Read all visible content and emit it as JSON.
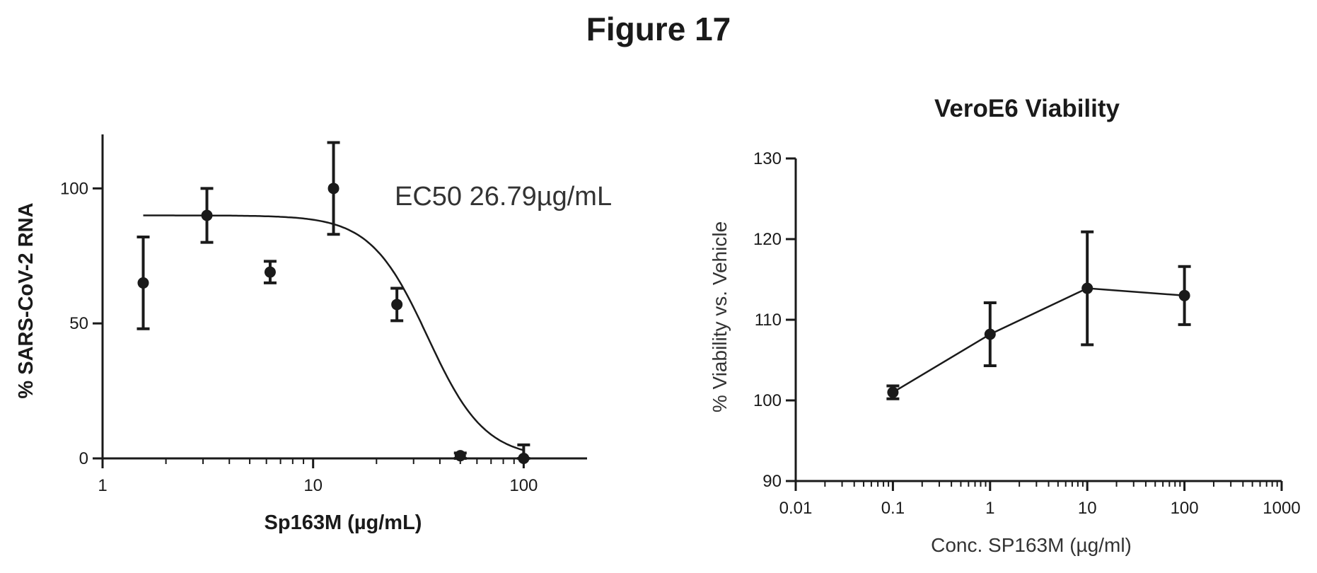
{
  "figure_title": "Figure 17",
  "chart_data": [
    {
      "type": "scatter",
      "title": "",
      "xlabel": "Sp163M (µg/mL)",
      "ylabel": "% SARS-CoV-2 RNA",
      "x_scale": "log",
      "xlim": [
        1,
        200
      ],
      "ylim": [
        0,
        120
      ],
      "x_ticks": [
        1,
        10,
        100
      ],
      "x_tick_labels": [
        "1",
        "10",
        "100"
      ],
      "y_ticks": [
        0,
        50,
        100
      ],
      "y_tick_labels": [
        "0",
        "50",
        "100"
      ],
      "annotation": "EC50 26.79µg/mL",
      "ec50": 26.79,
      "points": [
        {
          "x": 1.56,
          "y": 65,
          "err": 17
        },
        {
          "x": 3.13,
          "y": 90,
          "err": 10
        },
        {
          "x": 6.25,
          "y": 69,
          "err": 4
        },
        {
          "x": 12.5,
          "y": 100,
          "err": 17
        },
        {
          "x": 25,
          "y": 57,
          "err": 6
        },
        {
          "x": 50,
          "y": 1,
          "err": 1
        },
        {
          "x": 100,
          "y": 0,
          "err": 5
        }
      ],
      "fit_curve": {
        "model": "four-parameter logistic",
        "top": 90,
        "bottom": 0,
        "ec50": 35,
        "hill": 3.2,
        "x_range": [
          1.56,
          100
        ]
      }
    },
    {
      "type": "line",
      "title": "VeroE6 Viability",
      "xlabel": "Conc. SP163M (µg/ml)",
      "ylabel": "% Viability vs. Vehicle",
      "x_scale": "log",
      "xlim": [
        0.01,
        1000
      ],
      "ylim": [
        90,
        130
      ],
      "x_ticks": [
        0.01,
        0.1,
        1,
        10,
        100,
        1000
      ],
      "x_tick_labels": [
        "0.01",
        "0.1",
        "1",
        "10",
        "100",
        "1000"
      ],
      "y_ticks": [
        90,
        100,
        110,
        120,
        130
      ],
      "y_tick_labels": [
        "90",
        "100",
        "110",
        "120",
        "130"
      ],
      "points": [
        {
          "x": 0.1,
          "y": 101,
          "err": 0.8
        },
        {
          "x": 1,
          "y": 108.2,
          "err": 3.9
        },
        {
          "x": 10,
          "y": 113.9,
          "err": 7
        },
        {
          "x": 100,
          "y": 113,
          "err": 3.6
        }
      ]
    }
  ]
}
